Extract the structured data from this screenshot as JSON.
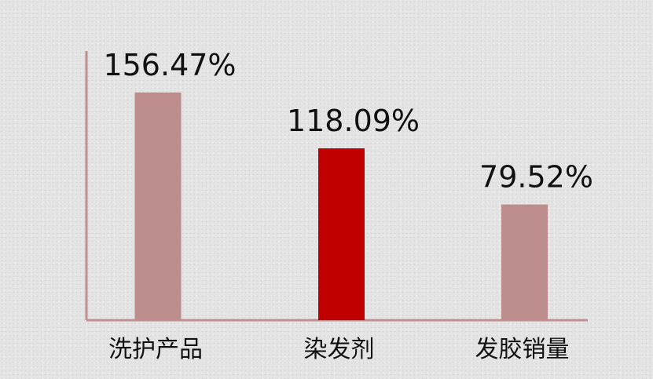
{
  "chart_data": {
    "type": "bar",
    "categories": [
      "洗护产品",
      "染发剂",
      "发胶销量"
    ],
    "values": [
      156.47,
      118.09,
      79.52
    ],
    "value_labels": [
      "156.47%",
      "118.09%",
      "79.52%"
    ],
    "ylim": [
      0,
      185
    ],
    "grid": false,
    "colors": [
      "#bd8c8c",
      "#c00000",
      "#bd8c8c"
    ],
    "axis_color": "#c09090"
  }
}
